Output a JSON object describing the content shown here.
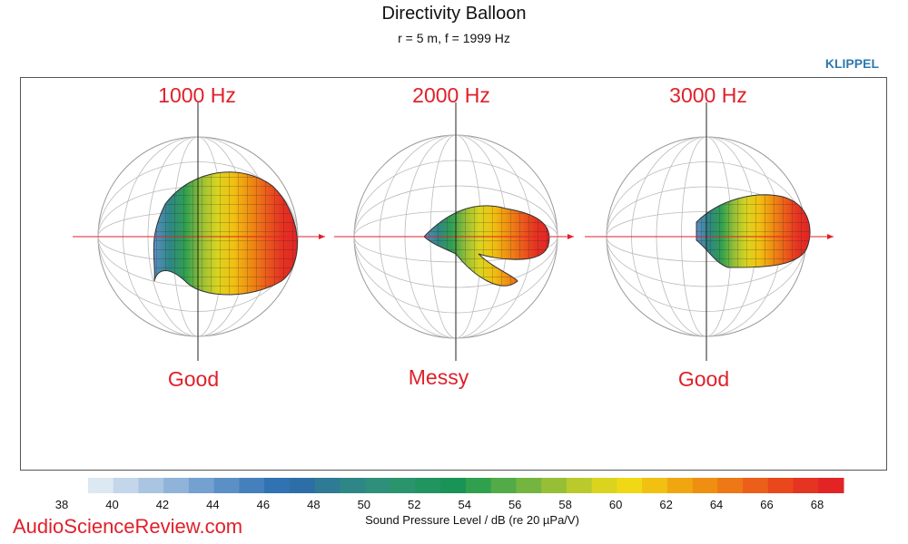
{
  "header": {
    "title": "Directivity Balloon",
    "subtitle": "r = 5 m, f = 1999 Hz",
    "brand": "KLIPPEL"
  },
  "watermark": "AudioScienceReview.com",
  "chart_data": {
    "type": "heatmap",
    "title": "Directivity Balloon",
    "subtitle": "r = 5 m, f = 1999 Hz",
    "panels": [
      {
        "frequency_label": "1000 Hz",
        "verdict": "Good"
      },
      {
        "frequency_label": "2000 Hz",
        "verdict": "Messy"
      },
      {
        "frequency_label": "3000 Hz",
        "verdict": "Good"
      }
    ],
    "colorbar": {
      "label": "Sound Pressure Level / dB (re 20 µPa/V)",
      "range": [
        38,
        68
      ],
      "ticks": [
        38,
        40,
        42,
        44,
        46,
        48,
        50,
        52,
        54,
        56,
        58,
        60,
        62,
        64,
        66,
        68
      ],
      "step": 1,
      "colors": [
        "#dce8f2",
        "#c3d6ea",
        "#a9c5e2",
        "#8fb3d9",
        "#74a1d0",
        "#5b90c6",
        "#4580bd",
        "#3172b3",
        "#2e6ea6",
        "#2f7a94",
        "#2f8686",
        "#2e907a",
        "#2a946c",
        "#219460",
        "#1a9357",
        "#30a04f",
        "#52ab48",
        "#74b540",
        "#97bf36",
        "#bac92c",
        "#dbd41f",
        "#f1d816",
        "#f1c011",
        "#f0a70f",
        "#ef8f12",
        "#ee7716",
        "#ec5f1a",
        "#e9481d",
        "#e53421",
        "#e22425"
      ]
    }
  }
}
